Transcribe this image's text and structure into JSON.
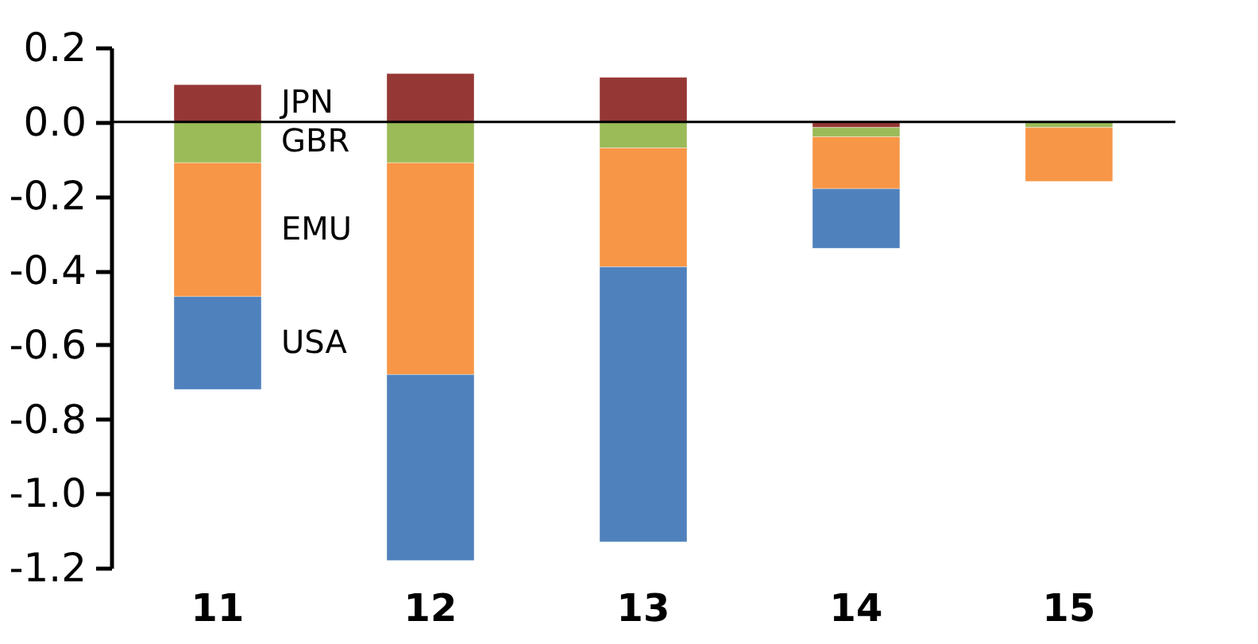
{
  "chart_data": {
    "type": "bar",
    "stacked": true,
    "categories": [
      "11",
      "12",
      "13",
      "14",
      "15"
    ],
    "series": [
      {
        "name": "JPN",
        "color": "#953735",
        "values": [
          0.1,
          0.13,
          0.12,
          -0.015,
          null
        ]
      },
      {
        "name": "GBR",
        "color": "#9bbb59",
        "values": [
          -0.11,
          -0.11,
          -0.07,
          -0.025,
          -0.015
        ]
      },
      {
        "name": "EMU",
        "color": "#f79646",
        "values": [
          -0.36,
          -0.57,
          -0.32,
          -0.14,
          -0.145
        ]
      },
      {
        "name": "USA",
        "color": "#4f81bd",
        "values": [
          -0.25,
          -0.5,
          -0.74,
          -0.16,
          null
        ]
      }
    ],
    "ylim": [
      -1.2,
      0.2
    ],
    "yticks": [
      {
        "value": -1.2,
        "label": "-1.2"
      },
      {
        "value": -1.0,
        "label": "-1.0"
      },
      {
        "value": -0.8,
        "label": "-0.8"
      },
      {
        "value": -0.6,
        "label": "-0.6"
      },
      {
        "value": -0.4,
        "label": "-0.4"
      },
      {
        "value": -0.2,
        "label": "-0.2"
      },
      {
        "value": 0,
        "label": "0.0"
      },
      {
        "value": 0.2,
        "label": "0.2"
      }
    ],
    "legend": false
  }
}
